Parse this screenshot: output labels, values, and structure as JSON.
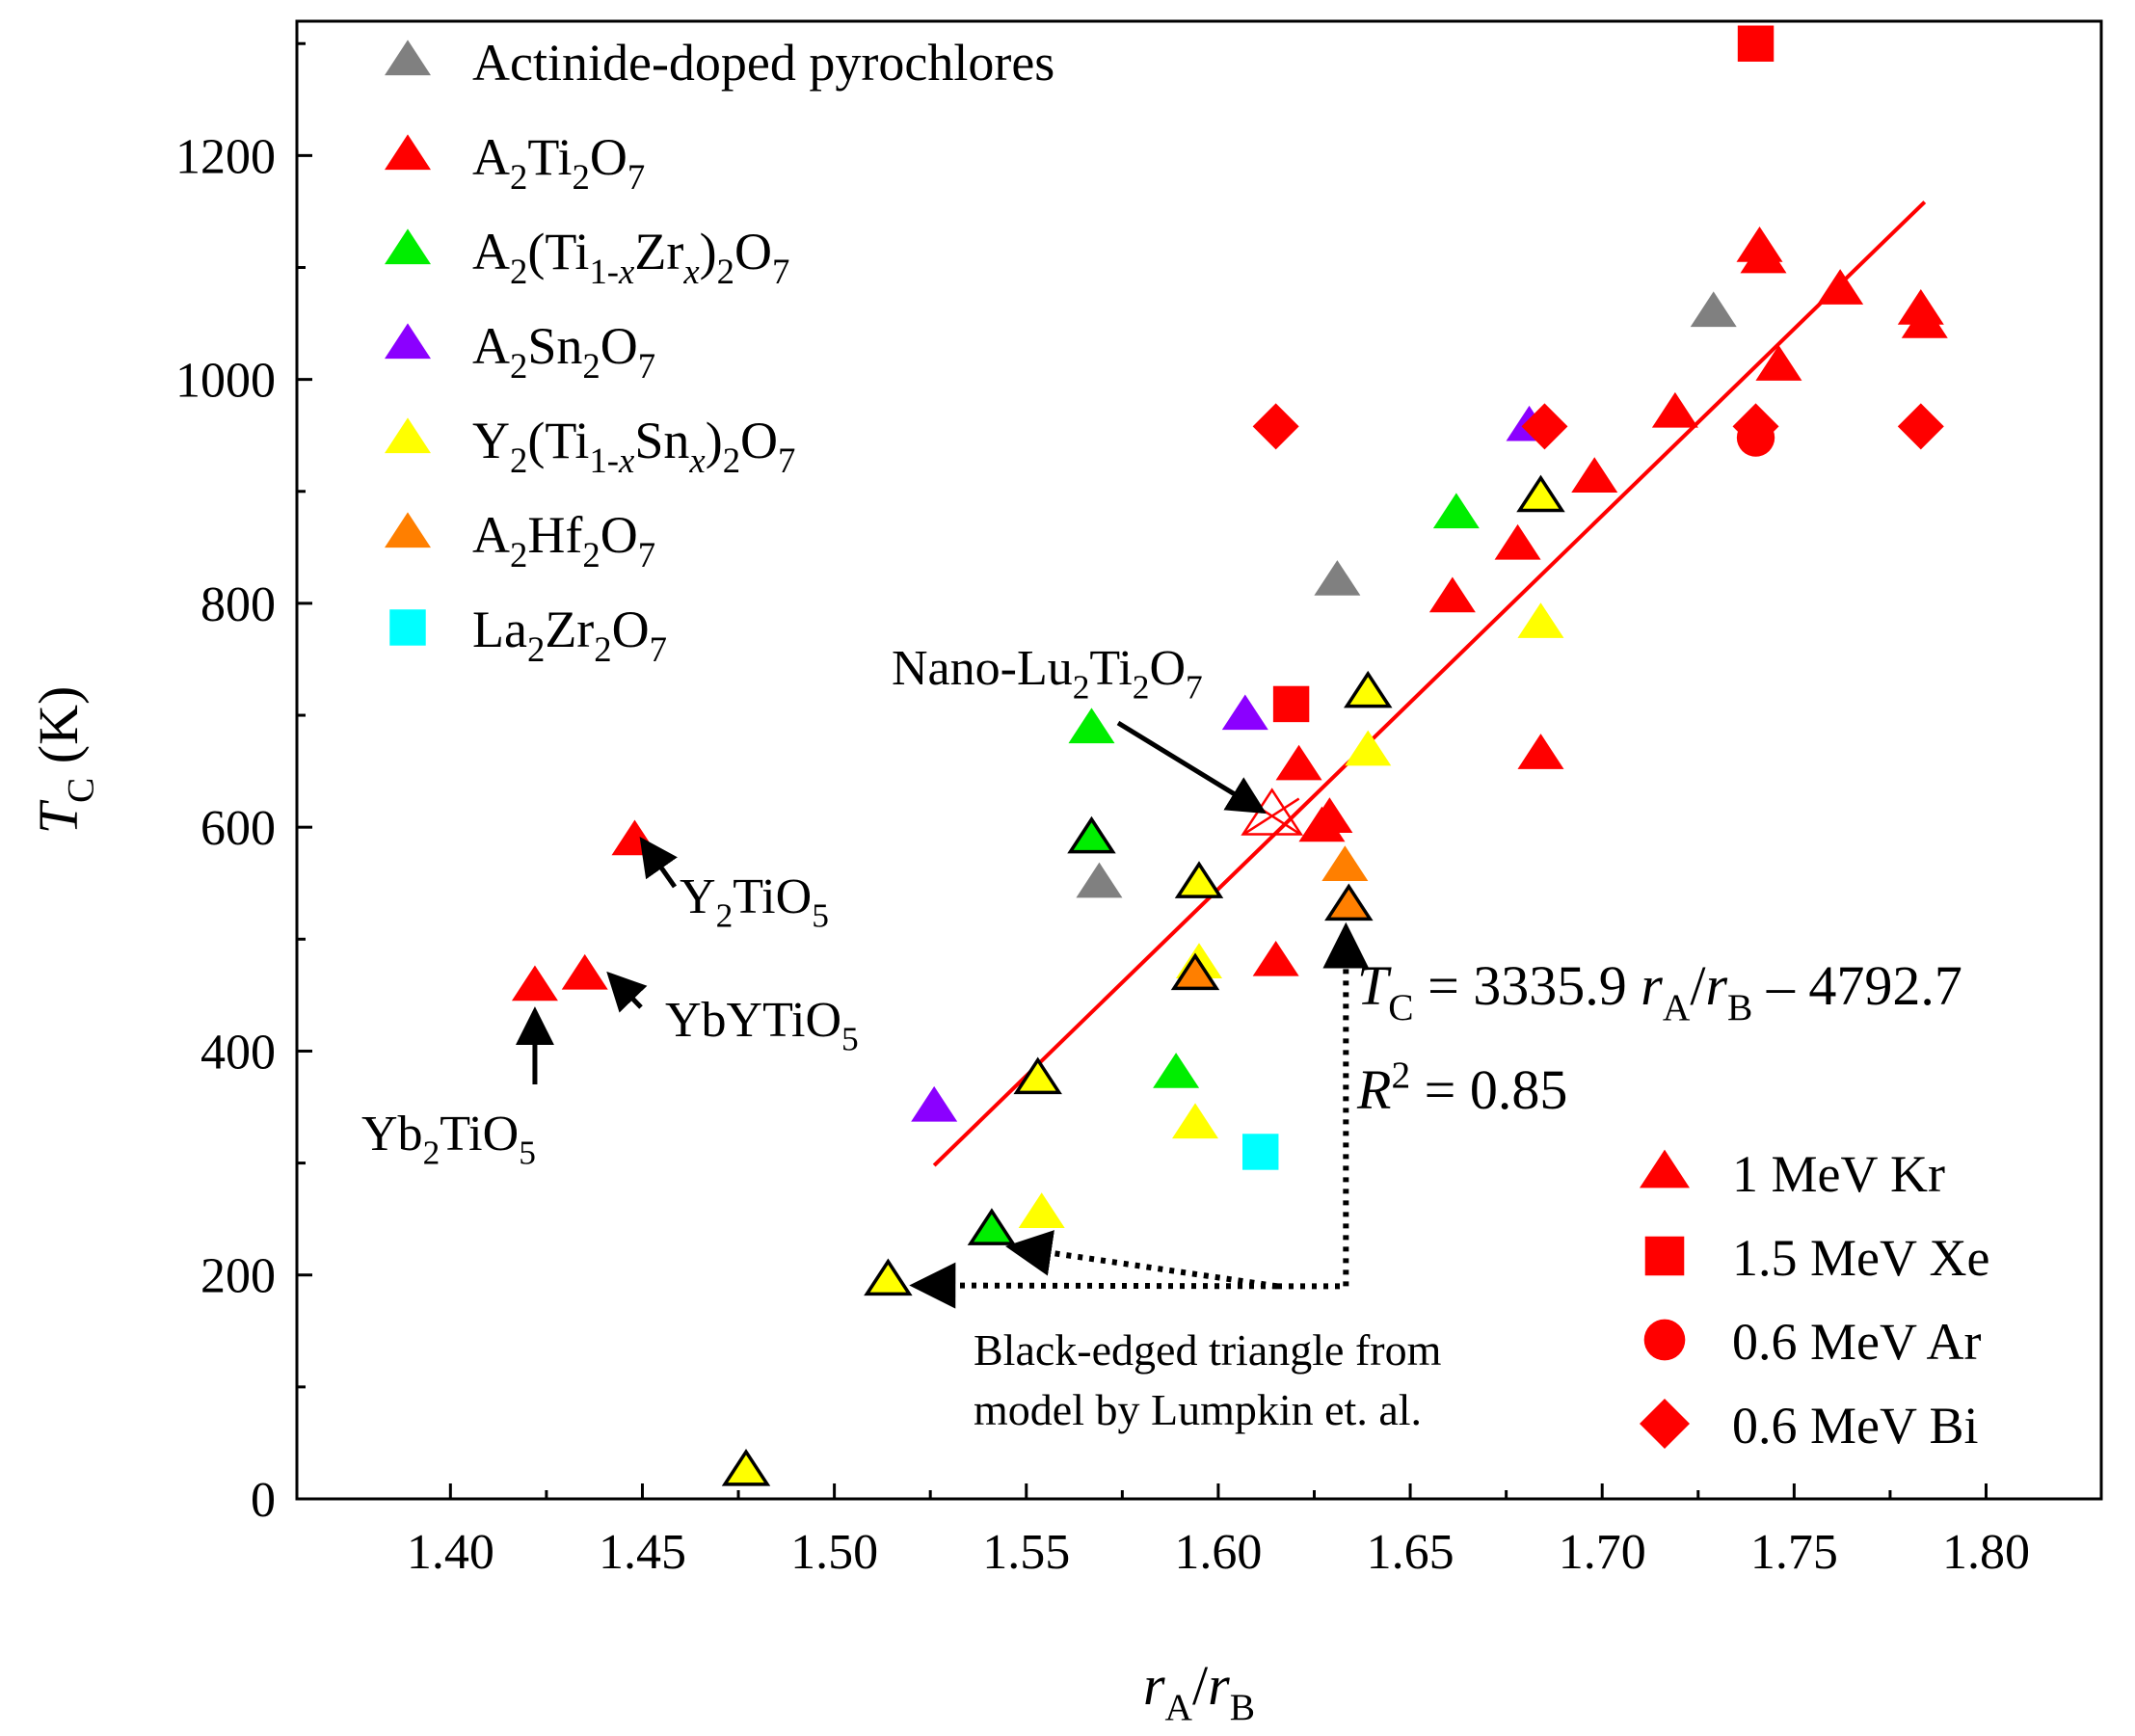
{
  "chart_data": {
    "type": "scatter",
    "xlabel": {
      "main": "r",
      "sub1": "A",
      "slash": "/r",
      "sub2": "B"
    },
    "ylabel": {
      "main": "T",
      "sub": "C",
      "unit": " (K)"
    },
    "xlim": [
      1.36,
      1.83
    ],
    "ylim": [
      0,
      1320
    ],
    "xticks": [
      1.4,
      1.45,
      1.5,
      1.55,
      1.6,
      1.65,
      1.7,
      1.75,
      1.8
    ],
    "xtick_labels": [
      "1.40",
      "1.45",
      "1.50",
      "1.55",
      "1.60",
      "1.65",
      "1.70",
      "1.75",
      "1.80"
    ],
    "yticks": [
      0,
      200,
      400,
      600,
      800,
      1000,
      1200
    ],
    "ytick_labels": [
      "0",
      "200",
      "400",
      "600",
      "800",
      "1000",
      "1200"
    ],
    "colors": {
      "actinide": "#808080",
      "titanate": "#ff0000",
      "titanate_zirconate": "#00ee00",
      "stannate": "#8b00ff",
      "yttrium_titanate_stannate": "#ffff00",
      "hafnate": "#ff7f00",
      "lanthanum_zirconate": "#00ffff",
      "fit_line": "#ff0000",
      "axis": "#000000"
    },
    "material_legend": [
      {
        "key": "actinide",
        "shape": "triangle",
        "parts": [
          [
            "n",
            "Actinide-doped pyrochlores"
          ]
        ]
      },
      {
        "key": "titanate",
        "shape": "triangle",
        "parts": [
          [
            "n",
            "A"
          ],
          [
            "sub",
            "2"
          ],
          [
            "n",
            "Ti"
          ],
          [
            "sub",
            "2"
          ],
          [
            "n",
            "O"
          ],
          [
            "sub",
            "7"
          ]
        ]
      },
      {
        "key": "titanate_zirconate",
        "shape": "triangle",
        "parts": [
          [
            "n",
            "A"
          ],
          [
            "sub",
            "2"
          ],
          [
            "n",
            "(Ti"
          ],
          [
            "sub",
            "1-"
          ],
          [
            "subi",
            "x"
          ],
          [
            "n",
            "Zr"
          ],
          [
            "subi",
            "x"
          ],
          [
            "n",
            ")"
          ],
          [
            "sub",
            "2"
          ],
          [
            "n",
            "O"
          ],
          [
            "sub",
            "7"
          ]
        ]
      },
      {
        "key": "stannate",
        "shape": "triangle",
        "parts": [
          [
            "n",
            "A"
          ],
          [
            "sub",
            "2"
          ],
          [
            "n",
            "Sn"
          ],
          [
            "sub",
            "2"
          ],
          [
            "n",
            "O"
          ],
          [
            "sub",
            "7"
          ]
        ]
      },
      {
        "key": "yttrium_titanate_stannate",
        "shape": "triangle",
        "parts": [
          [
            "n",
            "Y"
          ],
          [
            "sub",
            "2"
          ],
          [
            "n",
            "(Ti"
          ],
          [
            "sub",
            "1-"
          ],
          [
            "subi",
            "x"
          ],
          [
            "n",
            "Sn"
          ],
          [
            "subi",
            "x"
          ],
          [
            "n",
            ")"
          ],
          [
            "sub",
            "2"
          ],
          [
            "n",
            "O"
          ],
          [
            "sub",
            "7"
          ]
        ]
      },
      {
        "key": "hafnate",
        "shape": "triangle",
        "parts": [
          [
            "n",
            "A"
          ],
          [
            "sub",
            "2"
          ],
          [
            "n",
            "Hf"
          ],
          [
            "sub",
            "2"
          ],
          [
            "n",
            "O"
          ],
          [
            "sub",
            "7"
          ]
        ]
      },
      {
        "key": "lanthanum_zirconate",
        "shape": "square",
        "parts": [
          [
            "n",
            "La"
          ],
          [
            "sub",
            "2"
          ],
          [
            "n",
            "Zr"
          ],
          [
            "sub",
            "2"
          ],
          [
            "n",
            "O"
          ],
          [
            "sub",
            "7"
          ]
        ]
      }
    ],
    "ion_legend": [
      {
        "shape": "triangle",
        "label": "1 MeV Kr"
      },
      {
        "shape": "square",
        "label": "1.5 MeV Xe"
      },
      {
        "shape": "circle",
        "label": "0.6 MeV Ar"
      },
      {
        "shape": "diamond",
        "label": "0.6 MeV Bi"
      }
    ],
    "fit": {
      "slope": 3335.9,
      "intercept": -4792.7,
      "x_range": [
        1.526,
        1.784
      ],
      "equation_parts": [
        [
          "i",
          "T"
        ],
        [
          "sub",
          "C"
        ],
        [
          "n",
          " = 3335.9 "
        ],
        [
          "i",
          "r"
        ],
        [
          "sub",
          "A"
        ],
        [
          "n",
          "/"
        ],
        [
          "i",
          "r"
        ],
        [
          "sub",
          "B"
        ],
        [
          "n",
          " – 4792.7"
        ]
      ],
      "r2_parts": [
        [
          "i",
          "R"
        ],
        [
          "sup",
          "2"
        ],
        [
          "n",
          " = 0.85"
        ]
      ]
    },
    "series": [
      {
        "name": "Actinide-doped pyrochlores",
        "key": "actinide",
        "shape": "triangle",
        "points": [
          [
            1.569,
            550
          ],
          [
            1.631,
            820
          ],
          [
            1.729,
            1060
          ]
        ]
      },
      {
        "name": "A2Ti2O7",
        "key": "titanate",
        "shape": "triangle",
        "points": [
          [
            1.422,
            458
          ],
          [
            1.435,
            468
          ],
          [
            1.448,
            588
          ],
          [
            1.615,
            480
          ],
          [
            1.621,
            655
          ],
          [
            1.627,
            600
          ],
          [
            1.629,
            608
          ],
          [
            1.661,
            805
          ],
          [
            1.678,
            852
          ],
          [
            1.684,
            665
          ],
          [
            1.698,
            912
          ],
          [
            1.719,
            970
          ],
          [
            1.741,
            1118
          ],
          [
            1.742,
            1108
          ],
          [
            1.746,
            1012
          ],
          [
            1.762,
            1080
          ],
          [
            1.783,
            1062
          ],
          [
            1.784,
            1050
          ]
        ]
      },
      {
        "name": "A2(Ti1-xZrx)2O7",
        "key": "titanate_zirconate",
        "shape": "triangle",
        "points": [
          [
            1.567,
            688
          ],
          [
            1.589,
            380
          ],
          [
            1.662,
            880
          ]
        ]
      },
      {
        "name": "A2Sn2O7",
        "key": "stannate",
        "shape": "triangle",
        "points": [
          [
            1.526,
            350
          ],
          [
            1.607,
            700
          ],
          [
            1.681,
            958
          ]
        ]
      },
      {
        "name": "Y2(Ti1-xSnx)2O7",
        "key": "yttrium_titanate_stannate",
        "shape": "triangle",
        "points": [
          [
            1.554,
            255
          ],
          [
            1.594,
            335
          ],
          [
            1.595,
            478
          ],
          [
            1.639,
            668
          ],
          [
            1.684,
            782
          ]
        ]
      },
      {
        "name": "A2Hf2O7",
        "key": "hafnate",
        "shape": "triangle",
        "points": [
          [
            1.633,
            565
          ]
        ]
      },
      {
        "name": "La2Zr2O7",
        "key": "lanthanum_zirconate",
        "shape": "square",
        "points": [
          [
            1.611,
            310
          ]
        ]
      },
      {
        "name": "1.5 MeV Xe",
        "key": "titanate",
        "shape": "square",
        "points": [
          [
            1.619,
            710
          ],
          [
            1.74,
            1300
          ]
        ]
      },
      {
        "name": "0.6 MeV Ar",
        "key": "titanate",
        "shape": "circle",
        "points": [
          [
            1.74,
            948
          ]
        ]
      },
      {
        "name": "0.6 MeV Bi",
        "key": "titanate",
        "shape": "diamond",
        "points": [
          [
            1.615,
            958
          ],
          [
            1.685,
            958
          ],
          [
            1.74,
            958
          ],
          [
            1.783,
            958
          ]
        ]
      }
    ],
    "model_points": [
      {
        "key": "yttrium_titanate_stannate",
        "x": 1.477,
        "y": 25
      },
      {
        "key": "yttrium_titanate_stannate",
        "x": 1.514,
        "y": 195
      },
      {
        "key": "titanate_zirconate",
        "x": 1.541,
        "y": 240
      },
      {
        "key": "yttrium_titanate_stannate",
        "x": 1.553,
        "y": 375
      },
      {
        "key": "titanate_zirconate",
        "x": 1.567,
        "y": 590
      },
      {
        "key": "hafnate",
        "x": 1.594,
        "y": 468
      },
      {
        "key": "yttrium_titanate_stannate",
        "x": 1.595,
        "y": 550
      },
      {
        "key": "hafnate",
        "x": 1.634,
        "y": 530
      },
      {
        "key": "yttrium_titanate_stannate",
        "x": 1.639,
        "y": 720
      },
      {
        "key": "yttrium_titanate_stannate",
        "x": 1.684,
        "y": 895
      }
    ],
    "nano_point": {
      "x": 1.614,
      "y": 610
    },
    "annotations": {
      "nano": [
        [
          "n",
          "Nano-Lu"
        ],
        [
          "sub",
          "2"
        ],
        [
          "n",
          "Ti"
        ],
        [
          "sub",
          "2"
        ],
        [
          "n",
          "O"
        ],
        [
          "sub",
          "7"
        ]
      ],
      "y2tio5": [
        [
          "n",
          "Y"
        ],
        [
          "sub",
          "2"
        ],
        [
          "n",
          "TiO"
        ],
        [
          "sub",
          "5"
        ]
      ],
      "ybytio5": [
        [
          "n",
          "YbYTiO"
        ],
        [
          "sub",
          "5"
        ]
      ],
      "yb2tio5": [
        [
          "n",
          "Yb"
        ],
        [
          "sub",
          "2"
        ],
        [
          "n",
          "TiO"
        ],
        [
          "sub",
          "5"
        ]
      ],
      "note_line1": "Black-edged triangle from",
      "note_line2": "model by Lumpkin et. al."
    }
  }
}
